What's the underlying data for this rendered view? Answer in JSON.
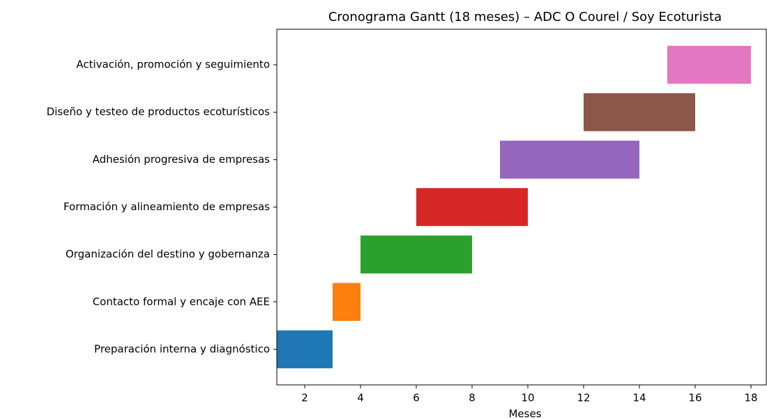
{
  "chart_data": {
    "type": "gantt",
    "title": "Cronograma Gantt (18 meses) – ADC O Courel / Soy Ecoturista",
    "x_label": "Meses",
    "tasks": [
      {
        "name": "Preparación interna y diagnóstico",
        "start": 1,
        "end": 3,
        "color": "#1f77b4"
      },
      {
        "name": "Contacto formal y encaje con AEE",
        "start": 3,
        "end": 4,
        "color": "#ff7f0e"
      },
      {
        "name": "Organización del destino y gobernanza",
        "start": 4,
        "end": 8,
        "color": "#2ca02c"
      },
      {
        "name": "Formación y alineamiento de empresas",
        "start": 6,
        "end": 10,
        "color": "#d62728"
      },
      {
        "name": "Adhesión progresiva de empresas",
        "start": 9,
        "end": 14,
        "color": "#9467bd"
      },
      {
        "name": "Diseño y testeo de productos ecoturísticos",
        "start": 12,
        "end": 16,
        "color": "#8c564b"
      },
      {
        "name": "Activación, promoción y seguimiento",
        "start": 15,
        "end": 18,
        "color": "#e377c2"
      }
    ],
    "xlim": [
      1,
      18.55
    ],
    "xticks": [
      2,
      4,
      6,
      8,
      10,
      12,
      14,
      16,
      18
    ]
  }
}
